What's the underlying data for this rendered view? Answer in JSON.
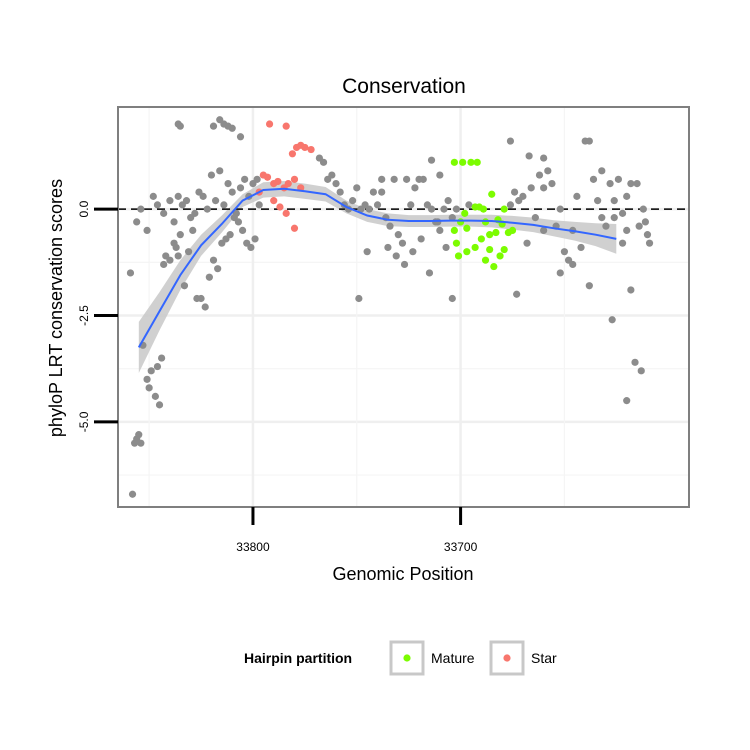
{
  "chart_data": {
    "type": "scatter",
    "title": "Conservation",
    "xlabel": "Genomic Position",
    "ylabel": "phyloP LRT conservation scores",
    "x_reversed": true,
    "xlim": [
      33865,
      33590
    ],
    "ylim": [
      -7.0,
      2.4
    ],
    "x_ticks": [
      {
        "value": 33800,
        "label": "33800"
      },
      {
        "value": 33700,
        "label": "33700"
      }
    ],
    "y_ticks": [
      {
        "value": 0.0,
        "label": "0.0"
      },
      {
        "value": -2.5,
        "label": "-2.5"
      },
      {
        "value": -5.0,
        "label": "-5.0"
      }
    ],
    "grid": true,
    "reference_line": {
      "y": 0,
      "style": "dashed"
    },
    "legend": {
      "title": "Hairpin partition",
      "placement": "bottom",
      "entries": [
        {
          "label": "Mature",
          "color": "#7CFC00"
        },
        {
          "label": "Star",
          "color": "#F8766D"
        }
      ]
    },
    "colors": {
      "other": "#8c8c8c",
      "mature": "#7CFC00",
      "star": "#F8766D",
      "smooth": "#3366FF",
      "band": "#c8c8c8"
    },
    "smooth_line": [
      [
        33855,
        -3.25
      ],
      [
        33845,
        -2.4
      ],
      [
        33835,
        -1.55
      ],
      [
        33825,
        -0.85
      ],
      [
        33815,
        -0.35
      ],
      [
        33805,
        0.2
      ],
      [
        33795,
        0.45
      ],
      [
        33785,
        0.48
      ],
      [
        33775,
        0.42
      ],
      [
        33765,
        0.35
      ],
      [
        33755,
        0.05
      ],
      [
        33745,
        -0.15
      ],
      [
        33735,
        -0.25
      ],
      [
        33725,
        -0.28
      ],
      [
        33715,
        -0.28
      ],
      [
        33705,
        -0.27
      ],
      [
        33695,
        -0.27
      ],
      [
        33685,
        -0.28
      ],
      [
        33675,
        -0.32
      ],
      [
        33665,
        -0.37
      ],
      [
        33655,
        -0.45
      ],
      [
        33645,
        -0.52
      ],
      [
        33635,
        -0.6
      ],
      [
        33625,
        -0.7
      ]
    ],
    "confidence_band": {
      "upper": [
        [
          33855,
          -2.65
        ],
        [
          33845,
          -1.95
        ],
        [
          33835,
          -1.2
        ],
        [
          33825,
          -0.6
        ],
        [
          33815,
          -0.15
        ],
        [
          33805,
          0.35
        ],
        [
          33795,
          0.63
        ],
        [
          33785,
          0.66
        ],
        [
          33775,
          0.6
        ],
        [
          33765,
          0.52
        ],
        [
          33755,
          0.2
        ],
        [
          33745,
          0.0
        ],
        [
          33735,
          -0.1
        ],
        [
          33725,
          -0.14
        ],
        [
          33715,
          -0.14
        ],
        [
          33705,
          -0.13
        ],
        [
          33695,
          -0.13
        ],
        [
          33685,
          -0.13
        ],
        [
          33675,
          -0.16
        ],
        [
          33665,
          -0.2
        ],
        [
          33655,
          -0.26
        ],
        [
          33645,
          -0.3
        ],
        [
          33635,
          -0.33
        ],
        [
          33625,
          -0.35
        ]
      ],
      "lower": [
        [
          33855,
          -3.85
        ],
        [
          33845,
          -2.85
        ],
        [
          33835,
          -1.9
        ],
        [
          33825,
          -1.1
        ],
        [
          33815,
          -0.55
        ],
        [
          33805,
          0.05
        ],
        [
          33795,
          0.27
        ],
        [
          33785,
          0.3
        ],
        [
          33775,
          0.24
        ],
        [
          33765,
          0.18
        ],
        [
          33755,
          -0.1
        ],
        [
          33745,
          -0.3
        ],
        [
          33735,
          -0.4
        ],
        [
          33725,
          -0.42
        ],
        [
          33715,
          -0.42
        ],
        [
          33705,
          -0.41
        ],
        [
          33695,
          -0.41
        ],
        [
          33685,
          -0.43
        ],
        [
          33675,
          -0.48
        ],
        [
          33665,
          -0.54
        ],
        [
          33655,
          -0.64
        ],
        [
          33645,
          -0.74
        ],
        [
          33635,
          -0.87
        ],
        [
          33625,
          -1.05
        ]
      ]
    },
    "series": [
      {
        "name": "Mature",
        "color": "#7CFC00",
        "points": [
          [
            33703,
            1.1
          ],
          [
            33699,
            1.1
          ],
          [
            33695,
            1.1
          ],
          [
            33692,
            1.1
          ],
          [
            33685,
            0.35
          ],
          [
            33693,
            0.05
          ],
          [
            33691,
            0.05
          ],
          [
            33689,
            0.0
          ],
          [
            33679,
            0.0
          ],
          [
            33698,
            -0.1
          ],
          [
            33703,
            -0.5
          ],
          [
            33700,
            -0.3
          ],
          [
            33697,
            -0.45
          ],
          [
            33688,
            -0.3
          ],
          [
            33686,
            -0.6
          ],
          [
            33683,
            -0.55
          ],
          [
            33680,
            -0.35
          ],
          [
            33682,
            -0.25
          ],
          [
            33677,
            -0.55
          ],
          [
            33675,
            -0.5
          ],
          [
            33701,
            -1.1
          ],
          [
            33697,
            -1.0
          ],
          [
            33693,
            -0.9
          ],
          [
            33690,
            -0.7
          ],
          [
            33688,
            -1.2
          ],
          [
            33684,
            -1.35
          ],
          [
            33681,
            -1.1
          ],
          [
            33679,
            -0.95
          ],
          [
            33702,
            -0.8
          ],
          [
            33686,
            -0.95
          ]
        ]
      },
      {
        "name": "Star",
        "color": "#F8766D",
        "points": [
          [
            33792,
            2.0
          ],
          [
            33784,
            1.95
          ],
          [
            33779,
            1.45
          ],
          [
            33775,
            1.45
          ],
          [
            33772,
            1.4
          ],
          [
            33777,
            1.5
          ],
          [
            33781,
            1.3
          ],
          [
            33795,
            0.8
          ],
          [
            33793,
            0.75
          ],
          [
            33790,
            0.6
          ],
          [
            33788,
            0.65
          ],
          [
            33785,
            0.5
          ],
          [
            33783,
            0.6
          ],
          [
            33780,
            0.7
          ],
          [
            33777,
            0.5
          ],
          [
            33790,
            0.2
          ],
          [
            33787,
            0.05
          ],
          [
            33784,
            -0.1
          ],
          [
            33780,
            -0.45
          ],
          [
            33797,
            0.4
          ]
        ]
      },
      {
        "name": "",
        "color": "#8c8c8c",
        "points": [
          [
            33859,
            -1.5
          ],
          [
            33858,
            -6.7
          ],
          [
            33857,
            -5.5
          ],
          [
            33856,
            -5.4
          ],
          [
            33855,
            -5.3
          ],
          [
            33854,
            -5.5
          ],
          [
            33853,
            -3.2
          ],
          [
            33851,
            -4.0
          ],
          [
            33850,
            -4.2
          ],
          [
            33849,
            -3.8
          ],
          [
            33847,
            -4.4
          ],
          [
            33846,
            -3.7
          ],
          [
            33845,
            -4.6
          ],
          [
            33844,
            -3.5
          ],
          [
            33843,
            -1.3
          ],
          [
            33842,
            -1.1
          ],
          [
            33840,
            -1.2
          ],
          [
            33838,
            -0.8
          ],
          [
            33837,
            -0.9
          ],
          [
            33836,
            -1.1
          ],
          [
            33835,
            -0.6
          ],
          [
            33833,
            -1.8
          ],
          [
            33831,
            -1.0
          ],
          [
            33829,
            -0.5
          ],
          [
            33827,
            -2.1
          ],
          [
            33825,
            -2.1
          ],
          [
            33823,
            -2.3
          ],
          [
            33821,
            -1.6
          ],
          [
            33819,
            -1.2
          ],
          [
            33817,
            -1.4
          ],
          [
            33815,
            -0.8
          ],
          [
            33813,
            -0.7
          ],
          [
            33811,
            -0.6
          ],
          [
            33809,
            -0.2
          ],
          [
            33807,
            -0.3
          ],
          [
            33805,
            -0.5
          ],
          [
            33803,
            -0.8
          ],
          [
            33801,
            -0.9
          ],
          [
            33799,
            -0.7
          ],
          [
            33797,
            0.1
          ],
          [
            33856,
            -0.3
          ],
          [
            33854,
            0.0
          ],
          [
            33851,
            -0.5
          ],
          [
            33848,
            0.3
          ],
          [
            33846,
            0.1
          ],
          [
            33843,
            -0.1
          ],
          [
            33840,
            0.2
          ],
          [
            33838,
            -0.3
          ],
          [
            33836,
            0.3
          ],
          [
            33834,
            0.1
          ],
          [
            33832,
            0.2
          ],
          [
            33830,
            -0.2
          ],
          [
            33828,
            -0.1
          ],
          [
            33826,
            0.4
          ],
          [
            33824,
            0.3
          ],
          [
            33822,
            0.0
          ],
          [
            33820,
            0.8
          ],
          [
            33818,
            0.2
          ],
          [
            33816,
            0.9
          ],
          [
            33814,
            0.1
          ],
          [
            33812,
            0.6
          ],
          [
            33810,
            0.4
          ],
          [
            33808,
            -0.1
          ],
          [
            33806,
            0.5
          ],
          [
            33804,
            0.7
          ],
          [
            33802,
            0.3
          ],
          [
            33800,
            0.6
          ],
          [
            33798,
            0.7
          ],
          [
            33836,
            2.0
          ],
          [
            33835,
            1.95
          ],
          [
            33819,
            1.95
          ],
          [
            33816,
            2.1
          ],
          [
            33814,
            2.0
          ],
          [
            33812,
            1.95
          ],
          [
            33810,
            1.9
          ],
          [
            33806,
            1.7
          ],
          [
            33768,
            1.2
          ],
          [
            33766,
            1.1
          ],
          [
            33764,
            0.7
          ],
          [
            33762,
            0.8
          ],
          [
            33760,
            0.6
          ],
          [
            33758,
            0.4
          ],
          [
            33756,
            0.1
          ],
          [
            33754,
            0.0
          ],
          [
            33752,
            0.2
          ],
          [
            33750,
            0.5
          ],
          [
            33748,
            0.0
          ],
          [
            33746,
            0.1
          ],
          [
            33744,
            0.0
          ],
          [
            33742,
            0.4
          ],
          [
            33740,
            0.1
          ],
          [
            33738,
            0.7
          ],
          [
            33736,
            -0.2
          ],
          [
            33734,
            -0.4
          ],
          [
            33732,
            0.7
          ],
          [
            33730,
            -0.6
          ],
          [
            33728,
            -0.8
          ],
          [
            33726,
            0.7
          ],
          [
            33724,
            0.1
          ],
          [
            33722,
            0.5
          ],
          [
            33720,
            0.7
          ],
          [
            33718,
            0.7
          ],
          [
            33716,
            0.1
          ],
          [
            33714,
            0.0
          ],
          [
            33712,
            -0.3
          ],
          [
            33710,
            -0.5
          ],
          [
            33708,
            0.0
          ],
          [
            33706,
            0.2
          ],
          [
            33704,
            -0.2
          ],
          [
            33702,
            0.0
          ],
          [
            33738,
            0.4
          ],
          [
            33735,
            -0.9
          ],
          [
            33731,
            -1.1
          ],
          [
            33727,
            -1.3
          ],
          [
            33723,
            -1.0
          ],
          [
            33719,
            -0.7
          ],
          [
            33715,
            -1.5
          ],
          [
            33711,
            -0.3
          ],
          [
            33707,
            -0.9
          ],
          [
            33704,
            -2.1
          ],
          [
            33749,
            -2.1
          ],
          [
            33745,
            -1.0
          ],
          [
            33714,
            1.15
          ],
          [
            33710,
            0.8
          ],
          [
            33696,
            0.1
          ],
          [
            33676,
            0.1
          ],
          [
            33674,
            0.4
          ],
          [
            33672,
            0.2
          ],
          [
            33670,
            0.3
          ],
          [
            33668,
            -0.8
          ],
          [
            33666,
            0.5
          ],
          [
            33664,
            -0.2
          ],
          [
            33662,
            0.8
          ],
          [
            33660,
            1.2
          ],
          [
            33658,
            0.9
          ],
          [
            33656,
            0.6
          ],
          [
            33654,
            -0.4
          ],
          [
            33652,
            0.0
          ],
          [
            33650,
            -1.0
          ],
          [
            33648,
            -1.2
          ],
          [
            33646,
            -0.5
          ],
          [
            33644,
            0.3
          ],
          [
            33642,
            -0.9
          ],
          [
            33640,
            1.6
          ],
          [
            33638,
            1.6
          ],
          [
            33636,
            0.7
          ],
          [
            33634,
            0.2
          ],
          [
            33632,
            0.9
          ],
          [
            33630,
            -0.4
          ],
          [
            33628,
            0.6
          ],
          [
            33626,
            -0.2
          ],
          [
            33624,
            0.7
          ],
          [
            33622,
            -0.1
          ],
          [
            33620,
            0.3
          ],
          [
            33618,
            0.6
          ],
          [
            33673,
            -2.0
          ],
          [
            33667,
            1.25
          ],
          [
            33660,
            -0.5
          ],
          [
            33652,
            -1.5
          ],
          [
            33646,
            -1.3
          ],
          [
            33638,
            -1.8
          ],
          [
            33632,
            -0.2
          ],
          [
            33627,
            -2.6
          ],
          [
            33622,
            -0.8
          ],
          [
            33620,
            -0.5
          ],
          [
            33612,
            0.0
          ],
          [
            33614,
            -0.4
          ],
          [
            33610,
            -0.6
          ],
          [
            33626,
            0.2
          ],
          [
            33616,
            -3.6
          ],
          [
            33613,
            -3.8
          ],
          [
            33618,
            -1.9
          ],
          [
            33620,
            -4.5
          ],
          [
            33676,
            1.6
          ],
          [
            33660,
            0.5
          ],
          [
            33609,
            -0.8
          ],
          [
            33611,
            -0.3
          ],
          [
            33615,
            0.6
          ]
        ]
      }
    ]
  }
}
